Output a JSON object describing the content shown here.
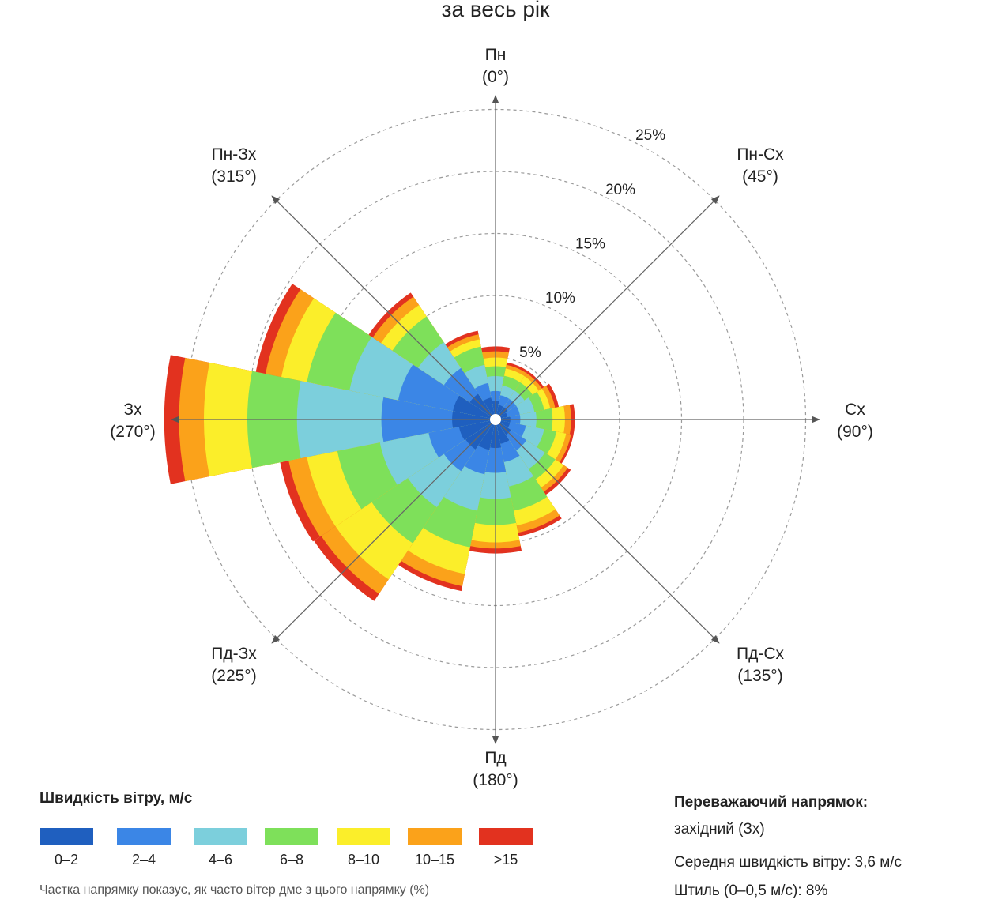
{
  "chart_data": {
    "type": "wind-rose",
    "title": "за весь рік",
    "radial_max_percent": 25,
    "rings": [
      5,
      10,
      15,
      20,
      25
    ],
    "ring_labels": [
      "5%",
      "10%",
      "15%",
      "20%",
      "25%"
    ],
    "directions": [
      {
        "name": "Пн",
        "deg_label": "(0°)",
        "angle": 0
      },
      {
        "name": "Пн-Сх",
        "deg_label": "(45°)",
        "angle": 45
      },
      {
        "name": "Сх",
        "deg_label": "(90°)",
        "angle": 90
      },
      {
        "name": "Пд-Сх",
        "deg_label": "(135°)",
        "angle": 135
      },
      {
        "name": "Пд",
        "deg_label": "(180°)",
        "angle": 180
      },
      {
        "name": "Пд-Зх",
        "deg_label": "(225°)",
        "angle": 225
      },
      {
        "name": "Зх",
        "deg_label": "(270°)",
        "angle": 270
      },
      {
        "name": "Пн-Зх",
        "deg_label": "(315°)",
        "angle": 315
      }
    ],
    "speed_bins": [
      {
        "label": "0–2",
        "color": "#1f5fbf"
      },
      {
        "label": "2–4",
        "color": "#3b86e6"
      },
      {
        "label": "4–6",
        "color": "#7ccfdc"
      },
      {
        "label": "6–8",
        "color": "#7ee05a"
      },
      {
        "label": "8–10",
        "color": "#fbee2a"
      },
      {
        "label": "10–15",
        "color": "#fba21a"
      },
      {
        "label": ">15",
        "color": "#e2321f"
      }
    ],
    "sectors": [
      {
        "center": 0,
        "width": 22.5,
        "cumulative": [
          1.5,
          2.3,
          3.5,
          4.3,
          5.0,
          5.5,
          5.9
        ]
      },
      {
        "center": 22.5,
        "width": 22.5,
        "cumulative": [
          1.2,
          2.0,
          2.8,
          3.6,
          4.2,
          4.5,
          4.7
        ]
      },
      {
        "center": 45,
        "width": 22.5,
        "cumulative": [
          1.2,
          2.0,
          2.8,
          3.6,
          4.2,
          4.5,
          4.7
        ]
      },
      {
        "center": 67.5,
        "width": 22.5,
        "cumulative": [
          1.0,
          2.0,
          3.2,
          4.0,
          4.5,
          4.9,
          5.2
        ]
      },
      {
        "center": 90,
        "width": 22.5,
        "cumulative": [
          1.2,
          2.0,
          3.3,
          4.6,
          5.6,
          6.1,
          6.4
        ]
      },
      {
        "center": 112.5,
        "width": 22.5,
        "cumulative": [
          1.2,
          2.5,
          4.0,
          5.0,
          5.8,
          6.2,
          6.4
        ]
      },
      {
        "center": 135,
        "width": 22.5,
        "cumulative": [
          1.5,
          3.0,
          4.8,
          5.8,
          6.6,
          7.0,
          7.3
        ]
      },
      {
        "center": 157.5,
        "width": 22.5,
        "cumulative": [
          2.0,
          3.5,
          5.5,
          7.5,
          8.7,
          9.3,
          9.6
        ]
      },
      {
        "center": 180,
        "width": 22.5,
        "cumulative": [
          2.3,
          4.3,
          6.4,
          8.5,
          9.9,
          10.4,
          10.8
        ]
      },
      {
        "center": 202.5,
        "width": 22.5,
        "cumulative": [
          2.5,
          4.5,
          7.5,
          10.5,
          12.7,
          13.7,
          14.1
        ]
      },
      {
        "center": 225,
        "width": 22.5,
        "cumulative": [
          2.9,
          5.0,
          8.5,
          12.0,
          15.5,
          16.9,
          17.6
        ]
      },
      {
        "center": 247.5,
        "width": 22.5,
        "cumulative": [
          3.0,
          5.5,
          9.5,
          13.0,
          15.5,
          17.0,
          17.7
        ]
      },
      {
        "center": 270,
        "width": 22.5,
        "cumulative": [
          3.5,
          9.2,
          16.0,
          20.0,
          23.5,
          25.5,
          26.7
        ]
      },
      {
        "center": 292.5,
        "width": 22.5,
        "cumulative": [
          3.5,
          8.0,
          12.0,
          15.5,
          17.6,
          18.9,
          19.7
        ]
      },
      {
        "center": 315,
        "width": 22.5,
        "cumulative": [
          2.5,
          5.0,
          7.5,
          10.0,
          11.1,
          11.9,
          12.3
        ]
      },
      {
        "center": 337.5,
        "width": 22.5,
        "cumulative": [
          1.8,
          3.0,
          4.5,
          6.0,
          6.6,
          7.0,
          7.3
        ]
      }
    ]
  },
  "legend": {
    "title": "Швидкість вітру, м/с",
    "note": "Частка напрямку показує, як часто вітер дме з цього напрямку (%)"
  },
  "summary": {
    "prevailing_label": "Переважаючий напрямок:",
    "prevailing_value": "західний (Зх)",
    "mean_speed": "Середня швидкість вітру:  3,6 м/с",
    "calm": "Штиль (0–0,5 м/с):  8%"
  }
}
